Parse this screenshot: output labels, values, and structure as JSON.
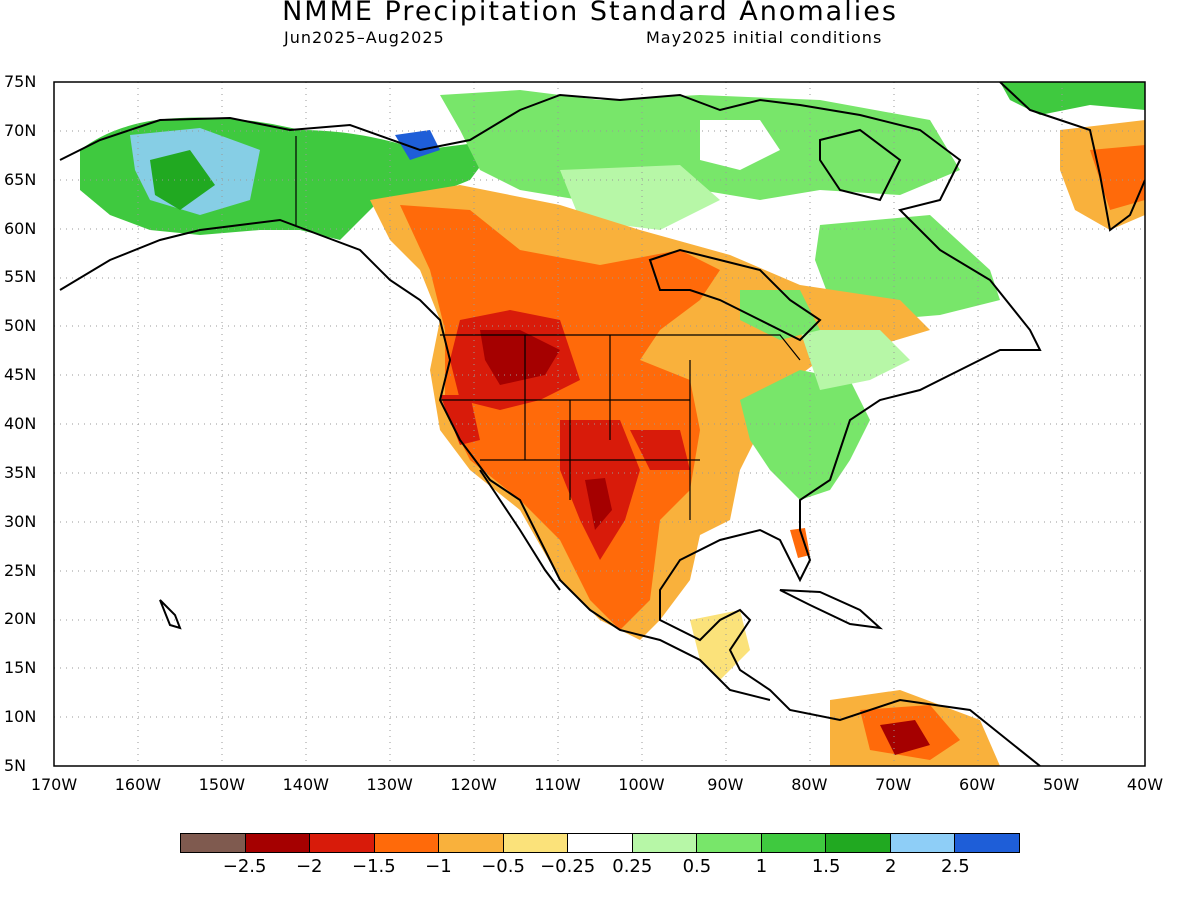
{
  "title": "NMME Precipitation Standard Anomalies",
  "subtitle_left": "Jun2025–Aug2025",
  "subtitle_right": "May2025 initial conditions",
  "lat_labels": [
    "75N",
    "70N",
    "65N",
    "60N",
    "55N",
    "50N",
    "45N",
    "40N",
    "35N",
    "30N",
    "25N",
    "20N",
    "15N",
    "10N",
    "5N"
  ],
  "lon_labels": [
    "170W",
    "160W",
    "150W",
    "140W",
    "130W",
    "120W",
    "110W",
    "100W",
    "90W",
    "80W",
    "70W",
    "60W",
    "50W",
    "40W"
  ],
  "legend": {
    "colors": [
      "#7f5a4f",
      "#a50000",
      "#d81b0a",
      "#ff6a0a",
      "#f9b13c",
      "#fbe27a",
      "#ffffff",
      "#b7f7a7",
      "#78e66a",
      "#3fc93f",
      "#21a921",
      "#8ecef7",
      "#1e5ed8"
    ],
    "labels": [
      "−2.5",
      "−2",
      "−1.5",
      "−1",
      "−0.5",
      "−0.25",
      "0.25",
      "0.5",
      "1",
      "1.5",
      "2",
      "2.5"
    ]
  }
}
